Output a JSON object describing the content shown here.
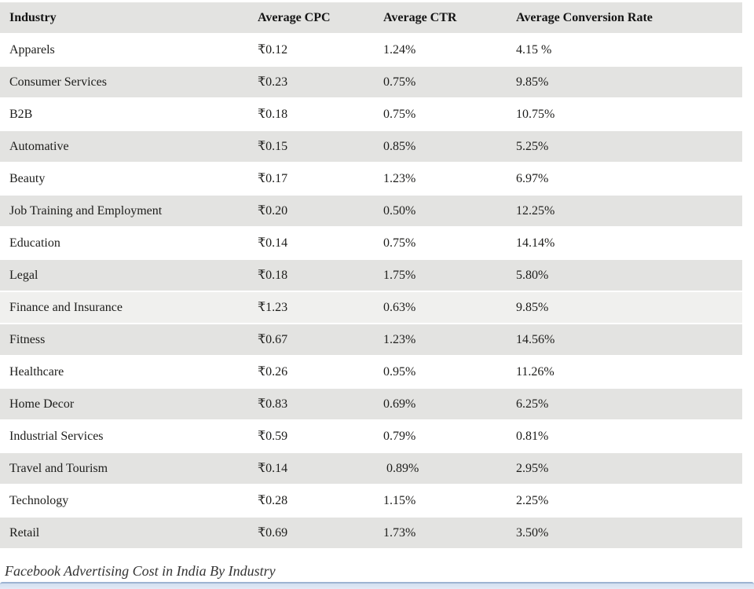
{
  "caption": "Facebook Advertising Cost in India By Industry",
  "colors": {
    "row_gray": "#e3e3e1",
    "row_light": "#f0f0ee",
    "row_white": "#ffffff",
    "text": "#1d1d1b",
    "scrollbar_fill": "#dce6f3",
    "scrollbar_border": "#9db4d2"
  },
  "chart_data": {
    "type": "table",
    "title": "Facebook Advertising Cost in India By Industry",
    "columns": [
      "Industry",
      "Average CPC",
      "Average CTR",
      "Average Conversion Rate"
    ],
    "rows": [
      [
        "Apparels",
        "₹0.12",
        "1.24%",
        "4.15 %"
      ],
      [
        "Consumer Services",
        "₹0.23",
        "0.75%",
        "9.85%"
      ],
      [
        "B2B",
        "₹0.18",
        "0.75%",
        "10.75%"
      ],
      [
        "Automative",
        "₹0.15",
        "0.85%",
        "5.25%"
      ],
      [
        "Beauty",
        "₹0.17",
        "1.23%",
        "6.97%"
      ],
      [
        "Job Training and Employment",
        "₹0.20",
        "0.50%",
        "12.25%"
      ],
      [
        "Education",
        "₹0.14",
        "0.75%",
        "14.14%"
      ],
      [
        "Legal",
        "₹0.18",
        "1.75%",
        "5.80%"
      ],
      [
        "Finance and Insurance",
        "₹1.23",
        "0.63%",
        "9.85%"
      ],
      [
        "Fitness",
        "₹0.67",
        "1.23%",
        "14.56%"
      ],
      [
        "Healthcare",
        "₹0.26",
        "0.95%",
        "11.26%"
      ],
      [
        "Home Decor",
        "₹0.83",
        "0.69%",
        "6.25%"
      ],
      [
        "Industrial Services",
        "₹0.59",
        "0.79%",
        "0.81%"
      ],
      [
        "Travel and Tourism",
        "₹0.14",
        " 0.89%",
        "2.95%"
      ],
      [
        "Technology",
        "₹0.28",
        "1.15%",
        "2.25%"
      ],
      [
        "Retail",
        "₹0.69",
        "1.73%",
        "3.50%"
      ]
    ],
    "row_shades": [
      "white",
      "gray",
      "white",
      "gray",
      "white",
      "gray",
      "white",
      "gray",
      "light",
      "gray",
      "white",
      "gray",
      "white",
      "gray",
      "white",
      "gray"
    ],
    "legend_position": "none",
    "grid": false
  }
}
